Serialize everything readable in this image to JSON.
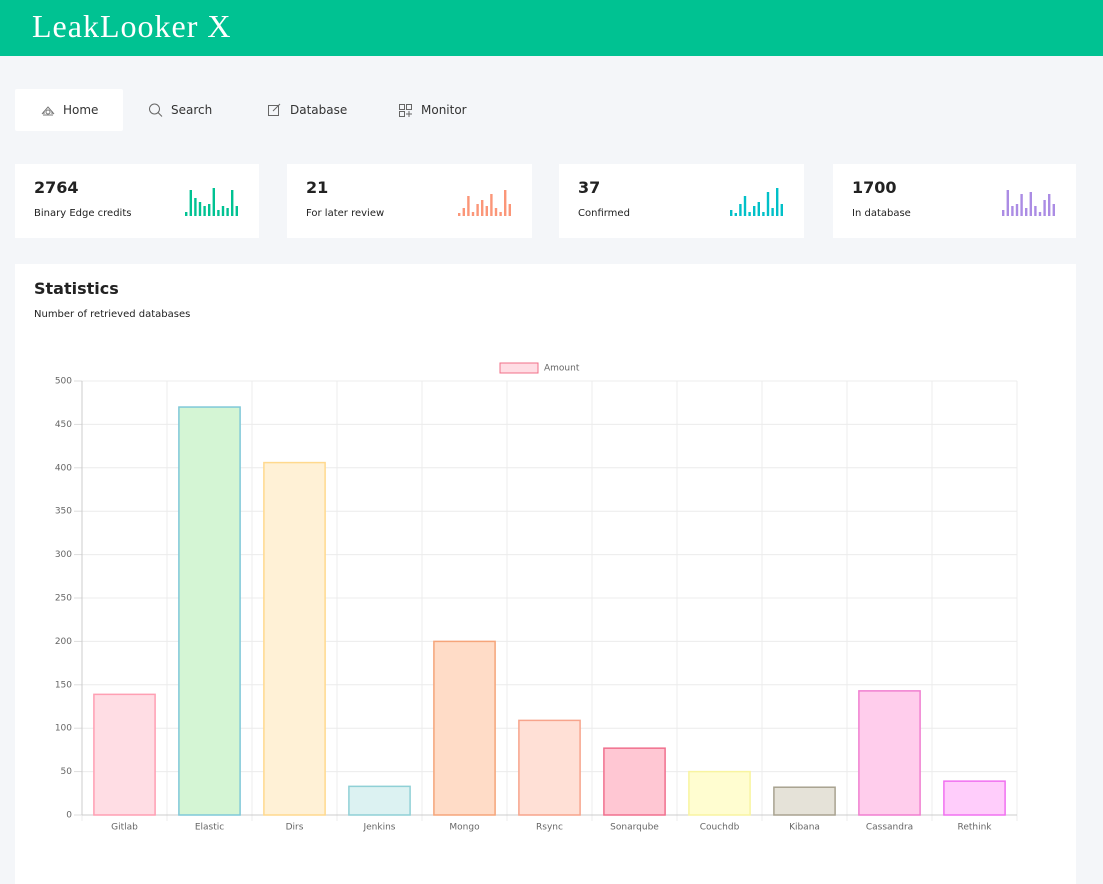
{
  "header": {
    "title": "LeakLooker X"
  },
  "nav": [
    "Home",
    "Search",
    "Database",
    "Monitor"
  ],
  "stats": [
    {
      "value": "2764",
      "label": "Binary Edge credits",
      "color": "#00c292"
    },
    {
      "value": "21",
      "label": "For later review",
      "color": "#fb9678"
    },
    {
      "value": "37",
      "label": "Confirmed",
      "color": "#01c0c8"
    },
    {
      "value": "1700",
      "label": "In database",
      "color": "#ab8ce4"
    }
  ],
  "card": {
    "title": "Statistics",
    "subtitle": "Number of retrieved databases"
  },
  "chart_data": {
    "type": "bar",
    "categories": [
      "Gitlab",
      "Elastic",
      "Dirs",
      "Jenkins",
      "Mongo",
      "Rsync",
      "Sonarqube",
      "Couchdb",
      "Kibana",
      "Cassandra",
      "Rethink"
    ],
    "series": [
      {
        "name": "Amount",
        "color": "#ffdde4",
        "border_color": "#f07088",
        "values": [
          139,
          470,
          406,
          33,
          200,
          109,
          77,
          50,
          32,
          143,
          39
        ],
        "fill_colors": [
          "#ffdde4",
          "#d4f5d4",
          "#fff1d6",
          "#dcf2f2",
          "#ffdcc7",
          "#ffe0d6",
          "#ffc7d3",
          "#fffdd0",
          "#e5e2d8",
          "#ffcdec",
          "#ffcdfb"
        ],
        "border_colors": [
          "#ff9fb3",
          "#7fc8d8",
          "#ffd98e",
          "#8fd0d6",
          "#f5a57a",
          "#f7a48c",
          "#f0708e",
          "#f8f4a0",
          "#a8a290",
          "#f07ed0",
          "#f070f0"
        ]
      }
    ],
    "ylim": [
      0,
      500
    ],
    "yticks": [
      0,
      50,
      100,
      150,
      200,
      250,
      300,
      350,
      400,
      450,
      500
    ],
    "grid": true,
    "legend": "top"
  }
}
